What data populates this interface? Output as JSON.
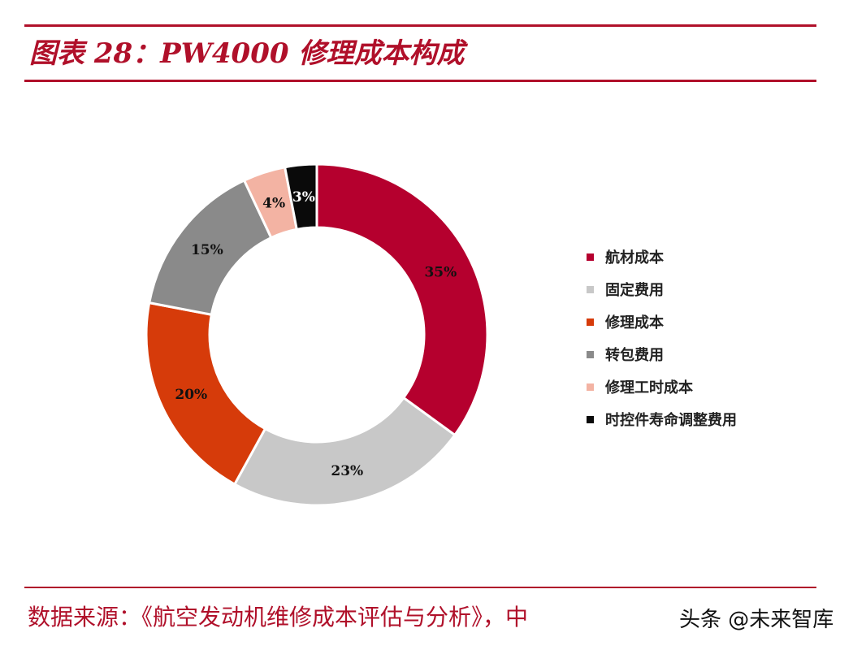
{
  "header": {
    "title": "图表 28：PW4000 修理成本构成"
  },
  "chart_data": {
    "type": "pie",
    "donut": true,
    "categories": [
      "航材成本",
      "固定费用",
      "修理成本",
      "转包费用",
      "修理工时成本",
      "时控件寿命调整费用"
    ],
    "values": [
      35,
      23,
      20,
      15,
      4,
      3
    ],
    "data_labels": [
      "35%",
      "23%",
      "20%",
      "15%",
      "4%",
      "3%"
    ],
    "colors": [
      "#b5002e",
      "#c8c8c8",
      "#d63b0a",
      "#8a8a8a",
      "#f3b3a3",
      "#0a0a0a"
    ],
    "label_colors": [
      "#111111",
      "#111111",
      "#111111",
      "#111111",
      "#111111",
      "#ffffff"
    ],
    "legend_position": "right"
  },
  "footer": {
    "source": "数据来源：《航空发动机维修成本评估与分析》，中",
    "watermark": "头条 @未来智库"
  }
}
